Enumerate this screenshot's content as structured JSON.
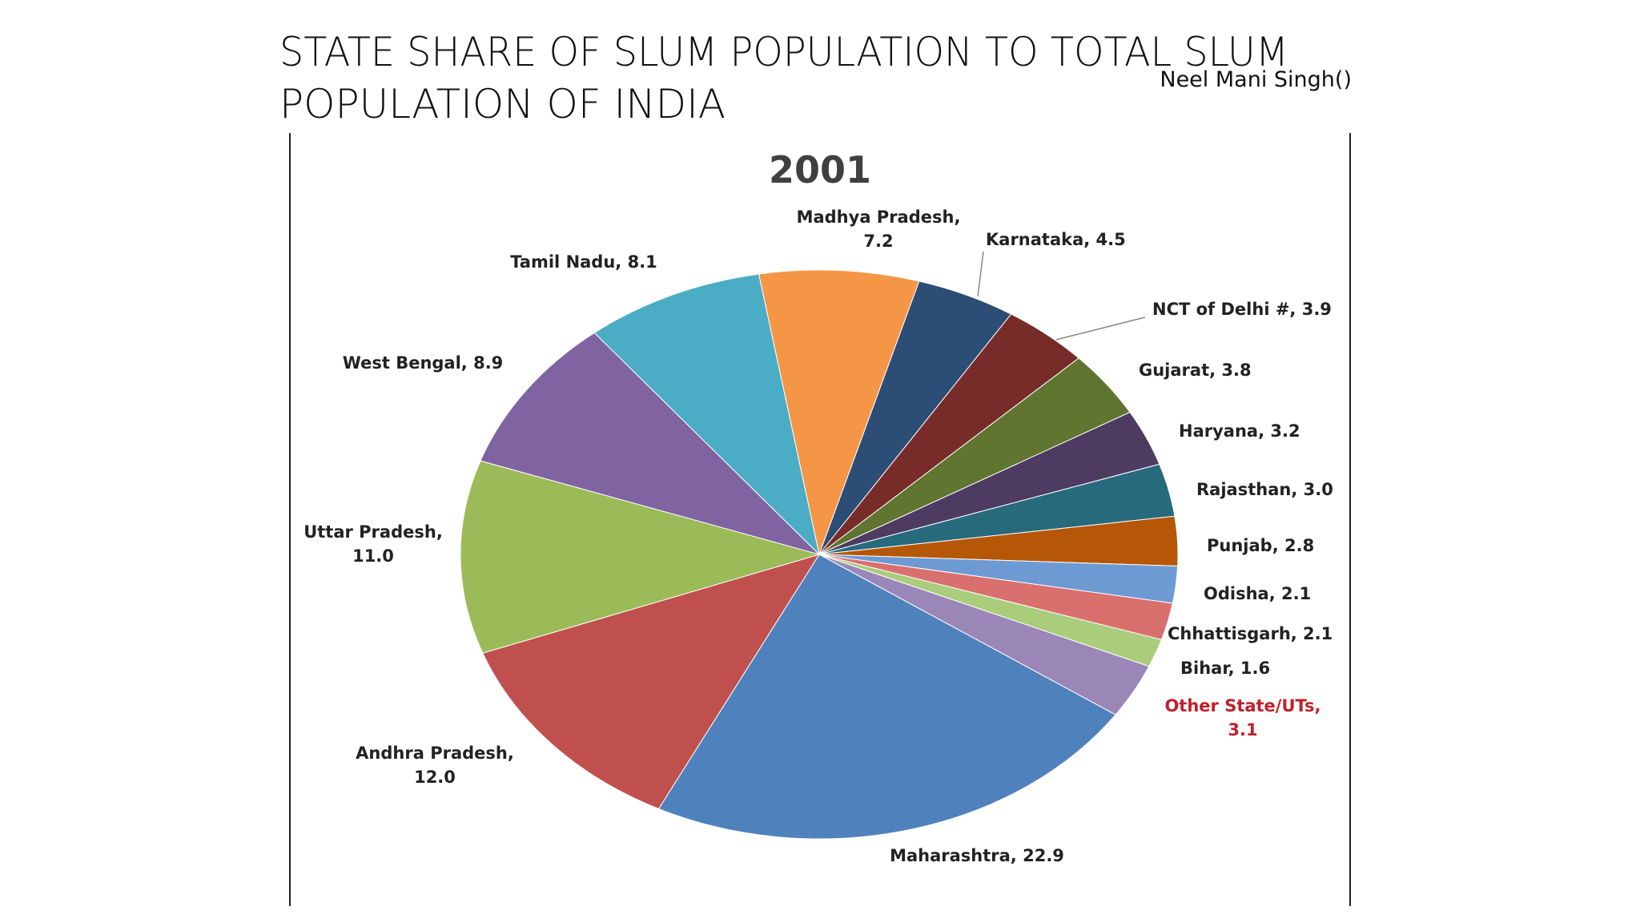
{
  "slide": {
    "title_lines": [
      "STATE SHARE OF SLUM POPULATION TO TOTAL SLUM",
      "POPULATION OF INDIA"
    ],
    "author": "Neel Mani Singh()"
  },
  "chart_data": {
    "type": "pie",
    "title": "2001",
    "labels": [
      [
        "Madhya Pradesh,",
        "7.2"
      ],
      [
        "Karnataka, 4.5"
      ],
      [
        "NCT of Delhi #, 3.9"
      ],
      [
        "Gujarat, 3.8"
      ],
      [
        "Haryana, 3.2"
      ],
      [
        "Rajasthan, 3.0"
      ],
      [
        "Punjab, 2.8"
      ],
      [
        "Odisha, 2.1"
      ],
      [
        "Chhattisgarh, 2.1"
      ],
      [
        "Bihar, 1.6"
      ],
      [
        "Other State/UTs,",
        "3.1"
      ],
      [
        "Maharashtra, 22.9"
      ],
      [
        "Andhra Pradesh,",
        "12.0"
      ],
      [
        "Uttar Pradesh,",
        "11.0"
      ],
      [
        "West Bengal, 8.9"
      ],
      [
        "Tamil Nadu, 8.1"
      ]
    ],
    "values": [
      7.2,
      4.5,
      3.9,
      3.8,
      3.2,
      3.0,
      2.8,
      2.1,
      2.1,
      1.6,
      3.1,
      22.9,
      12.0,
      11.0,
      8.9,
      8.1
    ],
    "colors": [
      "#f59646",
      "#2c4d75",
      "#772c2a",
      "#5f7530",
      "#4d3b62",
      "#276a7c",
      "#b65708",
      "#6d9ad2",
      "#d9706e",
      "#a9cd7a",
      "#9a87b8",
      "#4f81bd",
      "#c0504d",
      "#9bbb59",
      "#8064a2",
      "#4bacc6"
    ],
    "label_colors": [
      "#222222",
      "#222222",
      "#222222",
      "#222222",
      "#222222",
      "#222222",
      "#222222",
      "#222222",
      "#222222",
      "#222222",
      "#c0202a",
      "#222222",
      "#222222",
      "#222222",
      "#222222",
      "#222222"
    ]
  }
}
